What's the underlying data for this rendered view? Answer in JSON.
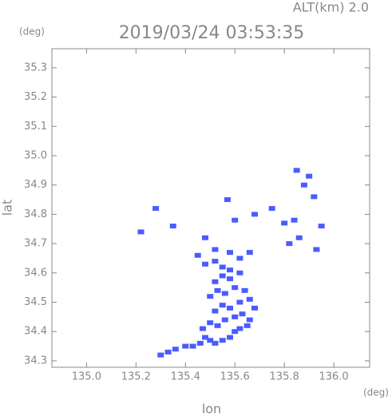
{
  "chart_data": {
    "type": "scatter",
    "title": "2019/03/24 03:53:35",
    "subtitle": "ALT(km) 2.0",
    "x_unit": "(deg)",
    "y_unit": "(deg)",
    "x_label": "lon",
    "y_label": "lat",
    "color": "#4a5cff",
    "x": [
      135.3,
      135.33,
      135.36,
      135.4,
      135.43,
      135.46,
      135.48,
      135.5,
      135.52,
      135.55,
      135.58,
      135.6,
      135.62,
      135.65,
      135.47,
      135.5,
      135.53,
      135.56,
      135.6,
      135.63,
      135.66,
      135.52,
      135.55,
      135.58,
      135.62,
      135.66,
      135.68,
      135.5,
      135.53,
      135.56,
      135.6,
      135.64,
      135.52,
      135.55,
      135.58,
      135.62,
      135.48,
      135.52,
      135.55,
      135.58,
      135.62,
      135.66,
      135.45,
      135.52,
      135.58,
      135.28,
      135.22,
      135.35,
      135.48,
      135.57,
      135.6,
      135.68,
      135.75,
      135.8,
      135.84,
      135.88,
      135.92,
      135.85,
      135.9,
      135.82,
      135.86,
      135.93,
      135.95
    ],
    "values": [
      34.32,
      34.33,
      34.34,
      34.35,
      34.35,
      34.36,
      34.38,
      34.37,
      34.36,
      34.37,
      34.38,
      34.4,
      34.41,
      34.42,
      34.41,
      34.43,
      34.42,
      34.44,
      34.45,
      34.46,
      34.44,
      34.47,
      34.49,
      34.48,
      34.5,
      34.51,
      34.48,
      34.52,
      34.54,
      34.53,
      34.55,
      34.54,
      34.57,
      34.59,
      34.58,
      34.6,
      34.63,
      34.64,
      34.62,
      34.61,
      34.65,
      34.67,
      34.66,
      34.68,
      34.67,
      34.82,
      34.74,
      34.76,
      34.72,
      34.85,
      34.78,
      34.8,
      34.82,
      34.77,
      34.78,
      34.9,
      34.86,
      34.95,
      34.93,
      34.7,
      34.72,
      34.68,
      34.76
    ],
    "xlim": [
      134.86,
      136.145
    ],
    "ylim": [
      34.278,
      35.365
    ],
    "xticks": [
      {
        "value": 135.0,
        "label": "135.0"
      },
      135.2,
      135.4,
      135.6,
      135.8,
      {
        "value": 136.0,
        "label": "136.0"
      }
    ],
    "yticks": [
      34.3,
      34.4,
      34.5,
      34.6,
      34.7,
      34.8,
      34.9,
      {
        "value": 35.0,
        "label": "35.0"
      },
      35.1,
      35.2,
      35.3
    ]
  }
}
